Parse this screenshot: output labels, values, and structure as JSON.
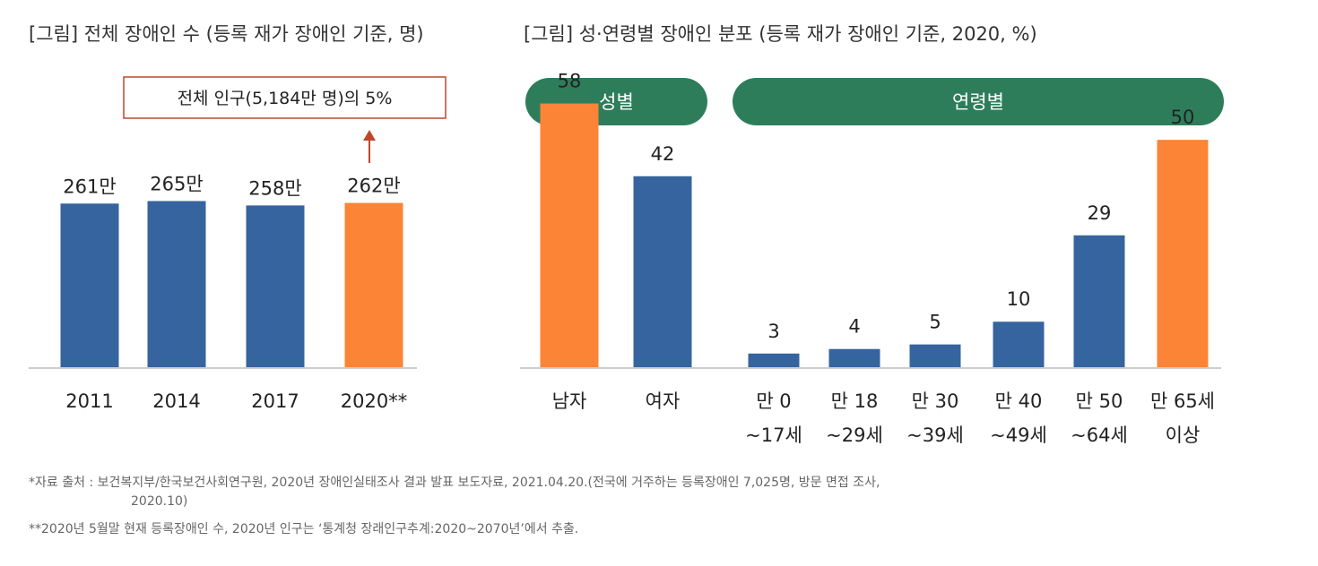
{
  "titles": {
    "left": "[그림] 전체 장애인 수 (등록 재가 장애인 기준, 명)",
    "right": "[그림] 성·연령별 장애인 분포 (등록 재가 장애인 기준, 2020, %)"
  },
  "colors": {
    "blue": "#36649e",
    "orange": "#fb8436",
    "green": "#2e7d5a",
    "callout": "#c0462a"
  },
  "chart_data": [
    {
      "type": "bar",
      "title": "",
      "categories": [
        "2011",
        "2014",
        "2017",
        "2020**"
      ],
      "values": [
        261,
        265,
        258,
        262
      ],
      "value_labels": [
        "261만",
        "265만",
        "258만",
        "262만"
      ],
      "unit": "만 명",
      "highlight_index": 3,
      "annotation": "전체 인구(5,184만 명)의 5%",
      "ylim": [
        0,
        300
      ]
    },
    {
      "type": "bar",
      "header": "성별",
      "categories": [
        [
          "남자"
        ],
        [
          "여자"
        ]
      ],
      "values": [
        58,
        42
      ],
      "highlight_index": 0,
      "ylim": [
        0,
        65
      ]
    },
    {
      "type": "bar",
      "header": "연령별",
      "categories": [
        [
          "만 0",
          "~17세"
        ],
        [
          "만 18",
          "~29세"
        ],
        [
          "만 30",
          "~39세"
        ],
        [
          "만 40",
          "~49세"
        ],
        [
          "만 50",
          "~64세"
        ],
        [
          "만 65세",
          "이상"
        ]
      ],
      "values": [
        3,
        4,
        5,
        10,
        29,
        50
      ],
      "highlight_index": 5,
      "ylim": [
        0,
        65
      ]
    }
  ],
  "footnotes": [
    "*자료 출처 : 보건복지부/한국보건사회연구원, 2020년 장애인실태조사 결과 발표 보도자료, 2021.04.20.(전국에 거주하는 등록장애인 7,025명, 방문 면접 조사,",
    "2020.10)",
    "**2020년 5월말 현재 등록장애인 수, 2020년 인구는 ‘통계청 장래인구추계:2020~2070년’에서 추출."
  ]
}
